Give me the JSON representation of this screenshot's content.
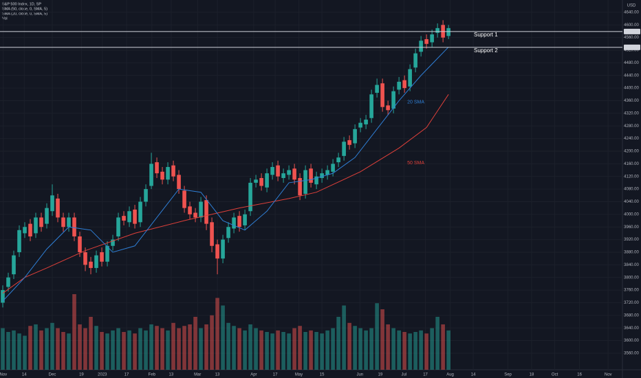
{
  "chart_data": {
    "type": "candlestick",
    "title": "S&P 500 Index, 1D, SP",
    "currency": "USD",
    "up_color": "#26a69a",
    "down_color": "#ef5350",
    "open": [
      3720,
      3770,
      3810,
      3880,
      3940,
      3970,
      3940,
      3990,
      3970,
      4010,
      4050,
      3990,
      3960,
      3990,
      3930,
      3880,
      3850,
      3830,
      3880,
      3850,
      3900,
      3930,
      3995,
      3975,
      4015,
      3975,
      4040,
      4090,
      4165,
      4135,
      4110,
      4155,
      4125,
      4075,
      4025,
      4005,
      3990,
      4045,
      3975,
      3905,
      3860,
      3925,
      3955,
      3995,
      3965,
      4010,
      4100,
      4115,
      4085,
      4125,
      4155,
      4115,
      4125,
      4145,
      4115,
      4065,
      4145,
      4095,
      4115,
      4125,
      4135,
      4165,
      4185,
      4235,
      4225,
      4275,
      4285,
      4305,
      4385,
      4415,
      4345,
      4335,
      4395,
      4425,
      4405,
      4465,
      4515,
      4555,
      4545,
      4575,
      4600,
      4565
    ],
    "high": [
      3775,
      3815,
      3885,
      3965,
      3975,
      3985,
      4005,
      4005,
      4035,
      4095,
      4065,
      4005,
      4005,
      4005,
      3945,
      3895,
      3865,
      3885,
      3895,
      3915,
      3935,
      4005,
      4010,
      4025,
      4030,
      4055,
      4095,
      4195,
      4180,
      4150,
      4165,
      4170,
      4140,
      4090,
      4040,
      4020,
      4055,
      4060,
      3990,
      3920,
      3935,
      3975,
      4005,
      4010,
      4015,
      4115,
      4125,
      4130,
      4145,
      4165,
      4170,
      4145,
      4155,
      4160,
      4130,
      4155,
      4160,
      4135,
      4145,
      4155,
      4175,
      4195,
      4245,
      4250,
      4285,
      4305,
      4315,
      4395,
      4430,
      4430,
      4360,
      4405,
      4435,
      4440,
      4475,
      4525,
      4565,
      4570,
      4585,
      4605,
      4615,
      4600
    ],
    "low": [
      3705,
      3755,
      3795,
      3865,
      3925,
      3915,
      3925,
      3945,
      3955,
      3995,
      3975,
      3945,
      3945,
      3915,
      3865,
      3820,
      3810,
      3815,
      3835,
      3835,
      3885,
      3915,
      3965,
      3960,
      3955,
      3960,
      4025,
      4080,
      4115,
      4095,
      4095,
      4105,
      4065,
      4005,
      3985,
      3975,
      3975,
      3950,
      3880,
      3810,
      3845,
      3910,
      3940,
      3945,
      3950,
      3995,
      4085,
      4075,
      4070,
      4110,
      4105,
      4100,
      4110,
      4095,
      4045,
      4050,
      4085,
      4080,
      4100,
      4110,
      4120,
      4150,
      4170,
      4205,
      4210,
      4260,
      4270,
      4290,
      4370,
      4325,
      4315,
      4320,
      4380,
      4385,
      4390,
      4450,
      4500,
      4525,
      4530,
      4560,
      4545,
      4555
    ],
    "close": [
      3760,
      3800,
      3870,
      3950,
      3960,
      3930,
      3990,
      3960,
      4020,
      4060,
      3990,
      3960,
      3990,
      3930,
      3880,
      3840,
      3830,
      3870,
      3850,
      3900,
      3920,
      3990,
      3980,
      4010,
      3970,
      4040,
      4080,
      4160,
      4130,
      4110,
      4150,
      4120,
      4080,
      4020,
      4000,
      3990,
      4040,
      3970,
      3900,
      3860,
      3920,
      3960,
      3990,
      3960,
      4000,
      4100,
      4110,
      4090,
      4130,
      4150,
      4120,
      4130,
      4140,
      4110,
      4060,
      4140,
      4100,
      4120,
      4130,
      4140,
      4160,
      4180,
      4230,
      4220,
      4270,
      4290,
      4300,
      4380,
      4410,
      4340,
      4330,
      4390,
      4420,
      4400,
      4460,
      4510,
      4550,
      4540,
      4570,
      4590,
      4560,
      4590
    ],
    "volume": {
      "name": "Vol",
      "vlim": [
        0,
        100
      ],
      "values": [
        55,
        50,
        52,
        48,
        45,
        58,
        60,
        52,
        55,
        62,
        55,
        50,
        48,
        100,
        60,
        55,
        70,
        58,
        50,
        48,
        52,
        55,
        50,
        52,
        48,
        55,
        52,
        60,
        58,
        55,
        52,
        62,
        55,
        58,
        60,
        70,
        55,
        60,
        72,
        95,
        85,
        62,
        58,
        55,
        52,
        60,
        55,
        52,
        50,
        48,
        52,
        50,
        48,
        55,
        58,
        50,
        52,
        50,
        48,
        52,
        55,
        70,
        85,
        62,
        58,
        55,
        52,
        55,
        88,
        80,
        60,
        55,
        52,
        50,
        48,
        50,
        52,
        48,
        55,
        70,
        60,
        52
      ]
    },
    "series": [
      {
        "name": "SMA (50, close, 0, SMA, 5)",
        "label": "50 SMA",
        "color": "#e0403a",
        "x": [
          0,
          4,
          8,
          15,
          24,
          33,
          43,
          52,
          57,
          65,
          72,
          77,
          81
        ],
        "values": [
          3750,
          3800,
          3830,
          3885,
          3940,
          3980,
          4020,
          4050,
          4070,
          4135,
          4210,
          4275,
          4380
        ]
      },
      {
        "name": "SMA (20, close, 0, SMA, 5)",
        "label": "20 SMA",
        "color": "#2f7fd6",
        "x": [
          0,
          4,
          8,
          12,
          16,
          20,
          24,
          28,
          32,
          36,
          40,
          44,
          48,
          52,
          56,
          60,
          64,
          68,
          72,
          76,
          81
        ],
        "values": [
          3725,
          3800,
          3890,
          3960,
          3950,
          3880,
          3900,
          3990,
          4080,
          4070,
          3980,
          3950,
          4010,
          4100,
          4110,
          4130,
          4180,
          4270,
          4360,
          4440,
          4530
        ]
      }
    ],
    "hlines": [
      {
        "label": "Support 1",
        "value": 4579
      },
      {
        "label": "Support 2",
        "value": 4529
      }
    ],
    "ylim": [
      3525,
      4679
    ],
    "yticks": [
      {
        "value": 4640,
        "label": "4640.00"
      },
      {
        "value": 4600,
        "label": "4600.00"
      },
      {
        "value": 4560,
        "label": "4560.00"
      },
      {
        "value": 4520,
        "label": "4520.00"
      },
      {
        "value": 4480,
        "label": "4480.00"
      },
      {
        "value": 4440,
        "label": "4440.00"
      },
      {
        "value": 4400,
        "label": "4400.00"
      },
      {
        "value": 4360,
        "label": "4360.00"
      },
      {
        "value": 4320,
        "label": "4320.00"
      },
      {
        "value": 4280,
        "label": "4280.00"
      },
      {
        "value": 4240,
        "label": "4240.00"
      },
      {
        "value": 4200,
        "label": "4200.00"
      },
      {
        "value": 4160,
        "label": "4160.00"
      },
      {
        "value": 4120,
        "label": "4120.00"
      },
      {
        "value": 4080,
        "label": "4080.00"
      },
      {
        "value": 4040,
        "label": "4040.00"
      },
      {
        "value": 4000,
        "label": "4000.00"
      },
      {
        "value": 3960,
        "label": "3960.00"
      },
      {
        "value": 3920,
        "label": "3920.00"
      },
      {
        "value": 3880,
        "label": "3880.00"
      },
      {
        "value": 3840,
        "label": "3840.00"
      },
      {
        "value": 3800,
        "label": "3800.00"
      },
      {
        "value": 3760,
        "label": "3760.00"
      },
      {
        "value": 3720,
        "label": "3720.00"
      },
      {
        "value": 3680,
        "label": "3680.00"
      },
      {
        "value": 3640,
        "label": "3640.00"
      },
      {
        "value": 3600,
        "label": "3600.00"
      },
      {
        "value": 3560,
        "label": "3560.00"
      }
    ],
    "xlim": [
      -0.5,
      112.6
    ],
    "xticks": [
      {
        "value": 0.1,
        "label": "Nov"
      },
      {
        "value": 3.9,
        "label": "14"
      },
      {
        "value": 9,
        "label": "Dec"
      },
      {
        "value": 14.3,
        "label": "19"
      },
      {
        "value": 18.1,
        "label": "2023"
      },
      {
        "value": 22.5,
        "label": "17"
      },
      {
        "value": 27.1,
        "label": "Feb"
      },
      {
        "value": 30.6,
        "label": "13"
      },
      {
        "value": 35.4,
        "label": "Mar"
      },
      {
        "value": 39,
        "label": "13"
      },
      {
        "value": 45.6,
        "label": "Apr"
      },
      {
        "value": 49.5,
        "label": "17"
      },
      {
        "value": 53.8,
        "label": "May"
      },
      {
        "value": 58,
        "label": "15"
      },
      {
        "value": 64.9,
        "label": "Jun"
      },
      {
        "value": 68.6,
        "label": "19"
      },
      {
        "value": 72.9,
        "label": "Jul"
      },
      {
        "value": 76.8,
        "label": "17"
      },
      {
        "value": 81.3,
        "label": "Aug"
      },
      {
        "value": 85.5,
        "label": "14"
      },
      {
        "value": 91.8,
        "label": "Sep"
      },
      {
        "value": 96.1,
        "label": "18"
      },
      {
        "value": 100.3,
        "label": "Oct"
      },
      {
        "value": 104.8,
        "label": "16"
      },
      {
        "value": 110,
        "label": "Nov"
      }
    ],
    "grid": true
  }
}
